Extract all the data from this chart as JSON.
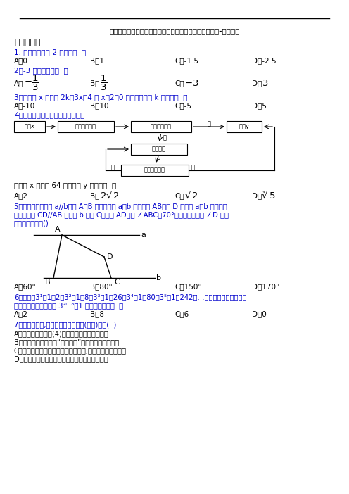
{
  "title": "深圳松岗中英文实验学校七年级上册数学期末试卷及答案-百度文库",
  "section1": "一、选择题",
  "bg_color": "#ffffff",
  "blue_color": "#0000cc",
  "q1": "1. 以下选项中比-2 小的是（  ）",
  "q1_opts": [
    "A＆0",
    "B＆1",
    "C＆-1.5",
    "D＆-2.5"
  ],
  "q2": "2．-3 的相反数是（  ）",
  "q3": "3．若关于 x 的方程 2k－3x＝4 与 x－2＝0 的解相同，则 k 的値为（  ）",
  "q3_opts": [
    "A＆-10",
    "B＆10",
    "C＆-5",
    "D＆5"
  ],
  "q4": "4．有一个数値转换器，流程如下：",
  "q4_note": "当输入 x 的値为 64 时，输出 y 的値是（  ）",
  "q5_l1": "5．如图，已知直线 a//b，点 A，B 分别在直线 a，b 上，连结 AB，点 D 是直线 a，b 之间的一",
  "q5_l2": "个动点，作 CD//AB 交直线 b 于点 C，连结 AD，若 ∠ABC＝70°，则下列选项中 ∠D 不可",
  "q5_l3": "能取到的度数为()",
  "q5_opts": [
    "A＆60°",
    "B＆80°",
    "C＆150°",
    "D＆170°"
  ],
  "q6_l1": "6．计算：3¹－1＝2，3²－1＝8，3³－1＝26，3⁴－1＝80，3⁵－1＝242，…，归纳各计算结果中的",
  "q6_l2": "个位数字的规律，猜测 3²⁰¹⁸－1 的个位数字是（  ）",
  "q6_opts": [
    "A＆2",
    "B＆8",
    "C＆6",
    "D＆0"
  ],
  "q7": "7．下列调查中,最适合采用全面调查(普查)的是(  )",
  "q7_opts": [
    "A．对广州市某校七(4)班同学的视力情况的调查",
    "B．对广州市市民知晓“礼让行人”交通新规情况的调查",
    "C．对广州市中学生观看电影《厉害了,我的国》情况的调查",
    "D．对广州市中学生每周课外阅读时间情况的调查"
  ]
}
